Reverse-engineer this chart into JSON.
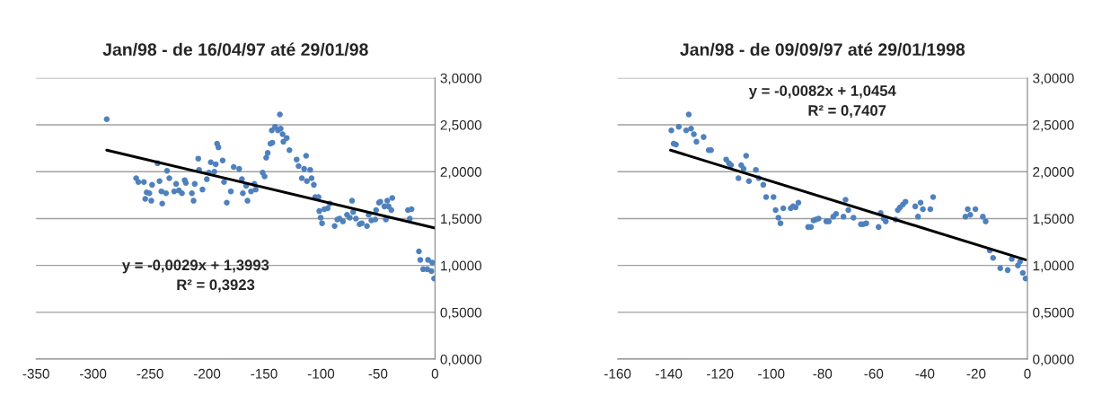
{
  "chart_data": [
    {
      "type": "scatter",
      "title": "Jan/98 - de 16/04/97 até 29/01/98",
      "annotations": [
        "y = -0,0029x + 1,3993",
        "R² = 0,3923"
      ],
      "xlim": [
        -350,
        0
      ],
      "xticks": [
        -350,
        -300,
        -250,
        -200,
        -150,
        -100,
        -50,
        0
      ],
      "ylim": [
        0,
        3
      ],
      "yticks": [
        {
          "value": 0,
          "label": "0,0000"
        },
        {
          "value": 0.5,
          "label": "0,5000"
        },
        {
          "value": 1,
          "label": "1,0000"
        },
        {
          "value": 1.5,
          "label": "1,5000"
        },
        {
          "value": 2,
          "label": "2,0000"
        },
        {
          "value": 2.5,
          "label": "2,5000"
        },
        {
          "value": 3,
          "label": "3,0000"
        }
      ],
      "grid": "y",
      "series": [
        {
          "color": "#4f81bd",
          "marker": "circle",
          "x": [
            -288,
            -262.2,
            -260.3,
            -255.4,
            -253,
            -254.2,
            -250.6,
            -248.9,
            -248.2,
            -243.4,
            -241.7,
            -240,
            -239.3,
            -236,
            -235.1,
            -233.1,
            -228.8,
            -227.1,
            -224.7,
            -222,
            -219.6,
            -218.6,
            -213.3,
            -211.8,
            -210.8,
            -207.7,
            -207,
            -204,
            -200.2,
            -198.4,
            -196.7,
            -193.6,
            -192.4,
            -191.2,
            -190,
            -186.3,
            -185.1,
            -182.7,
            -179.1,
            -176.6,
            -171.8,
            -169.4,
            -168.6,
            -164.5,
            -165.7,
            -161.4,
            -158.5,
            -157.3,
            -151.2,
            -149.5,
            -148.1,
            -146.8,
            -144.4,
            -142.7,
            -143.2,
            -140.3,
            -137.8,
            -136.1,
            -135.4,
            -133.7,
            -133,
            -130.1,
            -127.7,
            -121.4,
            -119.7,
            -116.8,
            -114.8,
            -113.1,
            -112.4,
            -109.5,
            -108.3,
            -106.3,
            -105.1,
            -102.2,
            -101.5,
            -100.3,
            -99.1,
            -97.1,
            -94.2,
            -92.2,
            -88.1,
            -85.7,
            -83.8,
            -80.8,
            -77.2,
            -74.8,
            -72.8,
            -71.8,
            -69.4,
            -66.2,
            -64.3,
            -59.7,
            -58.2,
            -55.8,
            -52.4,
            -51.7,
            -49.2,
            -48,
            -44.4,
            -43.1,
            -41.9,
            -40.7,
            -37.5,
            -38.3,
            -23.7,
            -20.6,
            -22.1,
            -14.1,
            -12.9,
            -10.4,
            -6.8,
            -6.1,
            -2.4,
            -3.2,
            -0.8
          ],
          "values": [
            2.56,
            1.93,
            1.89,
            1.89,
            1.78,
            1.71,
            1.77,
            1.69,
            1.86,
            2.09,
            1.9,
            1.79,
            1.66,
            1.77,
            2.01,
            1.93,
            1.79,
            1.87,
            1.8,
            1.77,
            1.91,
            1.88,
            1.77,
            1.69,
            1.87,
            2.14,
            2.02,
            1.81,
            1.92,
            1.99,
            2.1,
            2,
            2.08,
            2.3,
            2.26,
            2.12,
            1.89,
            1.67,
            1.79,
            2.05,
            2.03,
            1.92,
            1.77,
            1.69,
            1.85,
            1.79,
            1.87,
            1.81,
            1.99,
            1.95,
            2.15,
            2.2,
            2.3,
            2.31,
            2.44,
            2.48,
            2.44,
            2.61,
            2.46,
            2.4,
            2.32,
            2.36,
            2.23,
            2.13,
            2.06,
            1.93,
            2.03,
            2.17,
            1.9,
            2.02,
            1.93,
            1.86,
            1.73,
            1.73,
            1.58,
            1.51,
            1.45,
            1.6,
            1.61,
            1.66,
            1.42,
            1.49,
            1.5,
            1.47,
            1.54,
            1.51,
            1.69,
            1.57,
            1.5,
            1.44,
            1.45,
            1.42,
            1.54,
            1.48,
            1.49,
            1.59,
            1.67,
            1.68,
            1.63,
            1.49,
            1.69,
            1.63,
            1.72,
            1.59,
            1.59,
            1.6,
            1.5,
            1.15,
            1.06,
            0.96,
            0.96,
            1.06,
            1.03,
            0.94,
            0.86
          ]
        },
        {
          "type": "line",
          "color": "#000000",
          "x": [
            -288,
            0
          ],
          "values": [
            2.23,
            1.4
          ]
        }
      ]
    },
    {
      "type": "scatter",
      "title": "Jan/98 - de 09/09/97 até 29/01/1998",
      "annotations": [
        "y = -0,0082x + 1,0454",
        "R² = 0,7407"
      ],
      "xlim": [
        -160,
        0
      ],
      "xticks": [
        -160,
        -140,
        -120,
        -100,
        -80,
        -60,
        -40,
        -20,
        0
      ],
      "ylim": [
        0,
        3
      ],
      "yticks": [
        {
          "value": 0,
          "label": "0,0000"
        },
        {
          "value": 0.5,
          "label": "0,5000"
        },
        {
          "value": 1,
          "label": "1,0000"
        },
        {
          "value": 1.5,
          "label": "1,5000"
        },
        {
          "value": 2,
          "label": "2,0000"
        },
        {
          "value": 2.5,
          "label": "2,5000"
        },
        {
          "value": 3,
          "label": "3,0000"
        }
      ],
      "grid": "y",
      "series": [
        {
          "color": "#4f81bd",
          "marker": "circle",
          "x": [
            -139,
            -138.1,
            -137.2,
            -136.1,
            -133.2,
            -132.2,
            -131.3,
            -130.2,
            -129.2,
            -126.4,
            -124.4,
            -123.5,
            -117.6,
            -116.5,
            -115.7,
            -112.8,
            -111.7,
            -110.8,
            -109.8,
            -108.7,
            -106,
            -104.9,
            -103.1,
            -102,
            -99.1,
            -98.3,
            -97.2,
            -96.4,
            -95.3,
            -92.4,
            -91.5,
            -90.5,
            -89.4,
            -85.6,
            -84.5,
            -83.5,
            -82.6,
            -81.5,
            -78.5,
            -77.5,
            -75.8,
            -74.7,
            -71.8,
            -71,
            -69.9,
            -67.9,
            -65,
            -64.1,
            -62.9,
            -58.1,
            -57.3,
            -56.1,
            -55.3,
            -51.5,
            -50.6,
            -49.7,
            -48.6,
            -47.6,
            -43.8,
            -42.7,
            -41.7,
            -40.8,
            -37.9,
            -36.8,
            -24.2,
            -23.3,
            -22.3,
            -20.3,
            -17.4,
            -16.3,
            -14.7,
            -13.4,
            -10.6,
            -7.7,
            -6.1,
            -3.7,
            -2.9,
            -1.8,
            -0.7
          ],
          "values": [
            2.44,
            2.3,
            2.29,
            2.48,
            2.44,
            2.61,
            2.46,
            2.4,
            2.32,
            2.37,
            2.23,
            2.23,
            2.13,
            2.09,
            2.07,
            1.93,
            2.07,
            2.03,
            2.17,
            1.9,
            2.02,
            1.93,
            1.86,
            1.73,
            1.73,
            1.59,
            1.51,
            1.45,
            1.61,
            1.61,
            1.63,
            1.62,
            1.67,
            1.41,
            1.41,
            1.48,
            1.49,
            1.5,
            1.47,
            1.47,
            1.52,
            1.55,
            1.52,
            1.7,
            1.59,
            1.51,
            1.44,
            1.44,
            1.45,
            1.41,
            1.56,
            1.5,
            1.47,
            1.49,
            1.59,
            1.62,
            1.65,
            1.68,
            1.63,
            1.52,
            1.67,
            1.6,
            1.6,
            1.73,
            1.52,
            1.6,
            1.54,
            1.6,
            1.52,
            1.47,
            1.16,
            1.08,
            0.97,
            0.95,
            1.07,
            1,
            1.04,
            0.92,
            0.86
          ]
        },
        {
          "type": "line",
          "color": "#000000",
          "x": [
            -139.3,
            -0.7
          ],
          "values": [
            2.23,
            1.06
          ]
        }
      ]
    }
  ]
}
